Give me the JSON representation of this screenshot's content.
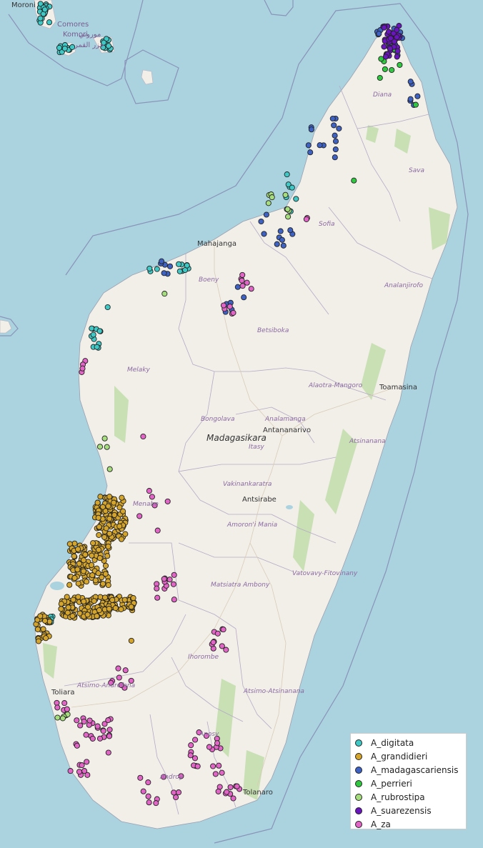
{
  "map": {
    "country_label": "Madagasikara",
    "cities": [
      {
        "name": "Mahajanga"
      },
      {
        "name": "Toamasina"
      },
      {
        "name": "Antananarivo"
      },
      {
        "name": "Antsirabe"
      },
      {
        "name": "Toliara"
      },
      {
        "name": "Tolanaro"
      },
      {
        "name": "Moroni"
      }
    ],
    "regions": [
      {
        "name": "Diana"
      },
      {
        "name": "Sava"
      },
      {
        "name": "Sofia"
      },
      {
        "name": "Boeny"
      },
      {
        "name": "Analanjirofo"
      },
      {
        "name": "Betsiboka"
      },
      {
        "name": "Melaky"
      },
      {
        "name": "Alaotra-Mangoro"
      },
      {
        "name": "Bongolava"
      },
      {
        "name": "Analamanga"
      },
      {
        "name": "Itasy"
      },
      {
        "name": "Atsinanana"
      },
      {
        "name": "Vakinankaratra"
      },
      {
        "name": "Menabe"
      },
      {
        "name": "Amoron'i Mania"
      },
      {
        "name": "Vatovavy-Fitovinany"
      },
      {
        "name": "Matsiatra Ambony"
      },
      {
        "name": "Ihorombe"
      },
      {
        "name": "Atsimo-Andrefana"
      },
      {
        "name": "Atsimo-Atsinanana"
      },
      {
        "name": "Anosy"
      },
      {
        "name": "Androy"
      }
    ],
    "comoros_labels": [
      "Comores",
      "Komori",
      "جزر القمر",
      "موروني"
    ],
    "colors": {
      "sea": "#aad3df",
      "land": "#f2efe9",
      "forest": "#c8e0b4",
      "border": "#a89cb8"
    }
  },
  "legend": {
    "items": [
      {
        "label": "A_digitata",
        "color": "#3ec9c6"
      },
      {
        "label": "A_grandidieri",
        "color": "#d4a52a"
      },
      {
        "label": "A_madagascariensis",
        "color": "#3e62c4"
      },
      {
        "label": "A_perrieri",
        "color": "#2ec93e"
      },
      {
        "label": "A_rubrostipa",
        "color": "#a6de7e"
      },
      {
        "label": "A_suarezensis",
        "color": "#6a14c0"
      },
      {
        "label": "A_za",
        "color": "#e164c6"
      }
    ]
  }
}
